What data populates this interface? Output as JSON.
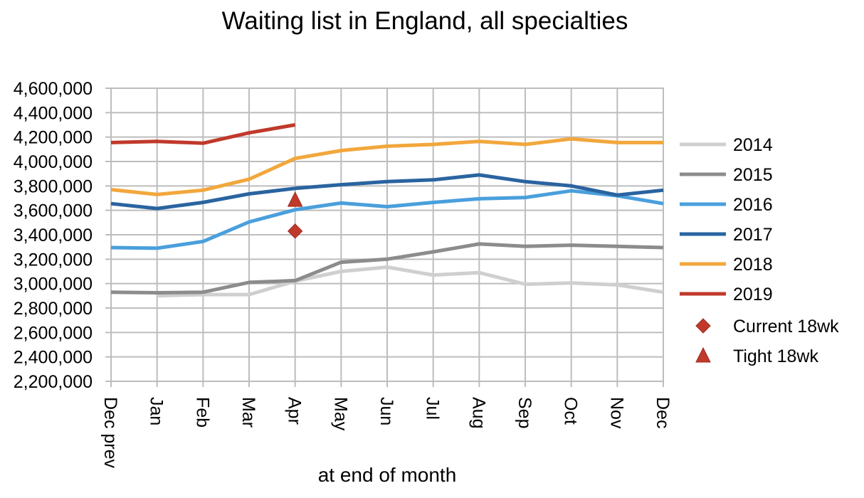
{
  "chart_data": {
    "type": "line",
    "title": "Waiting list in England, all specialties",
    "xlabel": "at end of month",
    "ylabel": "",
    "ylim": [
      2200000,
      4600000
    ],
    "yticks": [
      "4,600,000",
      "4,400,000",
      "4,200,000",
      "4,000,000",
      "3,800,000",
      "3,600,000",
      "3,400,000",
      "3,200,000",
      "3,000,000",
      "2,800,000",
      "2,600,000",
      "2,400,000",
      "2,200,000"
    ],
    "categories": [
      "Dec prev",
      "Jan",
      "Feb",
      "Mar",
      "Apr",
      "May",
      "Jun",
      "Jul",
      "Aug",
      "Sep",
      "Oct",
      "Nov",
      "Dec"
    ],
    "grid": true,
    "legend_position": "right",
    "series": [
      {
        "name": "2014",
        "color": "#cfcfcf",
        "values": [
          null,
          2900000,
          2910000,
          2910000,
          3020000,
          3100000,
          3135000,
          3070000,
          3090000,
          2995000,
          3005000,
          2990000,
          2930000
        ]
      },
      {
        "name": "2015",
        "color": "#8c8c8c",
        "values": [
          2930000,
          2925000,
          2930000,
          3010000,
          3025000,
          3175000,
          3200000,
          3260000,
          3325000,
          3305000,
          3315000,
          3305000,
          3295000
        ]
      },
      {
        "name": "2016",
        "color": "#4a9fdc",
        "values": [
          3295000,
          3290000,
          3345000,
          3505000,
          3605000,
          3660000,
          3630000,
          3665000,
          3695000,
          3705000,
          3760000,
          3720000,
          3655000
        ]
      },
      {
        "name": "2017",
        "color": "#2a64a0",
        "values": [
          3655000,
          3615000,
          3665000,
          3735000,
          3780000,
          3810000,
          3835000,
          3850000,
          3890000,
          3835000,
          3800000,
          3725000,
          3765000
        ]
      },
      {
        "name": "2018",
        "color": "#f2a73c",
        "values": [
          3770000,
          3730000,
          3765000,
          3855000,
          4025000,
          4090000,
          4125000,
          4140000,
          4165000,
          4140000,
          4185000,
          4155000,
          4155000
        ]
      },
      {
        "name": "2019",
        "color": "#c0392b",
        "values": [
          4155000,
          4165000,
          4150000,
          4235000,
          4300000,
          null,
          null,
          null,
          null,
          null,
          null,
          null,
          null
        ]
      }
    ],
    "markers": [
      {
        "name": "Current 18wk",
        "shape": "diamond",
        "color": "#c0392b",
        "x": "Apr",
        "y": 3430000
      },
      {
        "name": "Tight 18wk",
        "shape": "triangle",
        "color": "#c0392b",
        "x": "Apr",
        "y": 3685000
      }
    ]
  }
}
